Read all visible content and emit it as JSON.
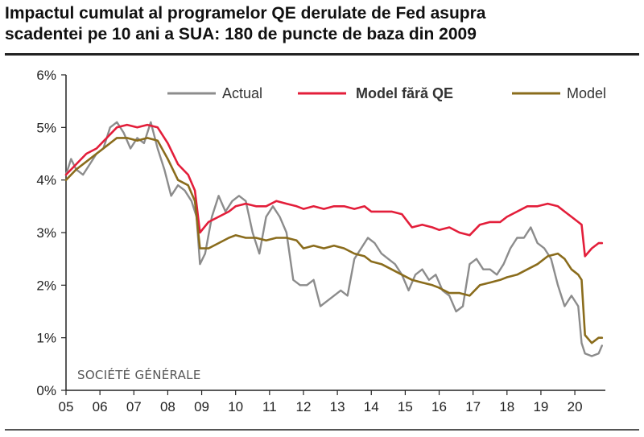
{
  "title_lines": [
    "Impactul cumulat al programelor QE derulate de Fed asupra",
    "scadentei pe 10 ani a SUA: 180 de puncte de baza din 2009"
  ],
  "source_label": "SOCIÉTÉ GÉNÉRALE",
  "colors": {
    "actual": "#8c8c8c",
    "no_qe": "#e31e3a",
    "model": "#8a6c1c",
    "axis": "#222222"
  },
  "chart_data": {
    "type": "line",
    "title": "Impactul cumulat al programelor QE derulate de Fed asupra scadentei pe 10 ani a SUA: 180 de puncte de baza din 2009",
    "xlabel": "",
    "ylabel": "",
    "x_range": [
      2005,
      2020.9
    ],
    "ylim": [
      0,
      6
    ],
    "y_ticks": [
      0,
      1,
      2,
      3,
      4,
      5,
      6
    ],
    "y_tick_labels": [
      "0%",
      "1%",
      "2%",
      "3%",
      "4%",
      "5%",
      "6%"
    ],
    "x_ticks": [
      2005,
      2006,
      2007,
      2008,
      2009,
      2010,
      2011,
      2012,
      2013,
      2014,
      2015,
      2016,
      2017,
      2018,
      2019,
      2020
    ],
    "x_tick_labels": [
      "05",
      "06",
      "07",
      "08",
      "09",
      "10",
      "11",
      "12",
      "13",
      "14",
      "15",
      "16",
      "17",
      "18",
      "19",
      "20"
    ],
    "grid": false,
    "legend_position": "top",
    "series": [
      {
        "name": "Actual",
        "x": [
          2005.0,
          2005.15,
          2005.3,
          2005.5,
          2005.7,
          2005.9,
          2006.1,
          2006.3,
          2006.5,
          2006.7,
          2006.9,
          2007.1,
          2007.3,
          2007.5,
          2007.7,
          2007.9,
          2008.1,
          2008.3,
          2008.5,
          2008.7,
          2008.85,
          2008.95,
          2009.1,
          2009.3,
          2009.5,
          2009.7,
          2009.9,
          2010.1,
          2010.3,
          2010.5,
          2010.7,
          2010.9,
          2011.1,
          2011.3,
          2011.5,
          2011.7,
          2011.9,
          2012.1,
          2012.3,
          2012.5,
          2012.7,
          2012.9,
          2013.1,
          2013.3,
          2013.5,
          2013.7,
          2013.9,
          2014.1,
          2014.3,
          2014.5,
          2014.7,
          2014.9,
          2015.1,
          2015.3,
          2015.5,
          2015.7,
          2015.9,
          2016.1,
          2016.3,
          2016.5,
          2016.7,
          2016.9,
          2017.1,
          2017.3,
          2017.5,
          2017.7,
          2017.9,
          2018.1,
          2018.3,
          2018.5,
          2018.7,
          2018.9,
          2019.1,
          2019.3,
          2019.5,
          2019.7,
          2019.9,
          2020.1,
          2020.2,
          2020.3,
          2020.5,
          2020.7,
          2020.8
        ],
        "values": [
          4.1,
          4.4,
          4.2,
          4.1,
          4.3,
          4.5,
          4.6,
          5.0,
          5.1,
          4.9,
          4.6,
          4.8,
          4.7,
          5.1,
          4.6,
          4.2,
          3.7,
          3.9,
          3.8,
          3.6,
          3.3,
          2.4,
          2.6,
          3.3,
          3.7,
          3.4,
          3.6,
          3.7,
          3.6,
          3.0,
          2.6,
          3.3,
          3.5,
          3.3,
          3.0,
          2.1,
          2.0,
          2.0,
          2.1,
          1.6,
          1.7,
          1.8,
          1.9,
          1.8,
          2.5,
          2.7,
          2.9,
          2.8,
          2.6,
          2.5,
          2.4,
          2.2,
          1.9,
          2.2,
          2.3,
          2.1,
          2.2,
          1.9,
          1.8,
          1.5,
          1.6,
          2.4,
          2.5,
          2.3,
          2.3,
          2.2,
          2.4,
          2.7,
          2.9,
          2.9,
          3.1,
          2.8,
          2.7,
          2.5,
          2.0,
          1.6,
          1.8,
          1.6,
          0.9,
          0.7,
          0.65,
          0.7,
          0.85
        ]
      },
      {
        "name": "Model fără QE",
        "x": [
          2005.0,
          2005.3,
          2005.6,
          2005.9,
          2006.2,
          2006.5,
          2006.8,
          2007.1,
          2007.4,
          2007.7,
          2008.0,
          2008.3,
          2008.6,
          2008.8,
          2008.95,
          2009.2,
          2009.5,
          2009.8,
          2010.0,
          2010.3,
          2010.6,
          2010.9,
          2011.2,
          2011.5,
          2011.8,
          2012.0,
          2012.3,
          2012.6,
          2012.9,
          2013.2,
          2013.5,
          2013.8,
          2014.0,
          2014.3,
          2014.6,
          2014.9,
          2015.2,
          2015.5,
          2015.8,
          2016.0,
          2016.3,
          2016.6,
          2016.9,
          2017.2,
          2017.5,
          2017.8,
          2018.0,
          2018.3,
          2018.6,
          2018.9,
          2019.2,
          2019.5,
          2019.7,
          2019.9,
          2020.1,
          2020.2,
          2020.3,
          2020.5,
          2020.7,
          2020.8
        ],
        "values": [
          4.1,
          4.3,
          4.5,
          4.6,
          4.8,
          5.0,
          5.05,
          5.0,
          5.05,
          5.0,
          4.7,
          4.3,
          4.1,
          3.8,
          3.0,
          3.2,
          3.3,
          3.4,
          3.5,
          3.55,
          3.5,
          3.5,
          3.6,
          3.55,
          3.5,
          3.45,
          3.5,
          3.45,
          3.5,
          3.5,
          3.45,
          3.5,
          3.4,
          3.4,
          3.4,
          3.35,
          3.1,
          3.15,
          3.1,
          3.05,
          3.1,
          3.0,
          2.95,
          3.15,
          3.2,
          3.2,
          3.3,
          3.4,
          3.5,
          3.5,
          3.55,
          3.5,
          3.4,
          3.3,
          3.2,
          3.15,
          2.55,
          2.7,
          2.8,
          2.8
        ]
      },
      {
        "name": "Model",
        "x": [
          2005.0,
          2005.3,
          2005.6,
          2005.9,
          2006.2,
          2006.5,
          2006.8,
          2007.1,
          2007.4,
          2007.7,
          2008.0,
          2008.3,
          2008.6,
          2008.8,
          2008.95,
          2009.2,
          2009.5,
          2009.8,
          2010.0,
          2010.3,
          2010.6,
          2010.9,
          2011.2,
          2011.5,
          2011.8,
          2012.0,
          2012.3,
          2012.6,
          2012.9,
          2013.2,
          2013.5,
          2013.8,
          2014.0,
          2014.3,
          2014.6,
          2014.9,
          2015.2,
          2015.5,
          2015.8,
          2016.0,
          2016.3,
          2016.6,
          2016.9,
          2017.2,
          2017.5,
          2017.8,
          2018.0,
          2018.3,
          2018.6,
          2018.9,
          2019.2,
          2019.5,
          2019.7,
          2019.9,
          2020.1,
          2020.2,
          2020.3,
          2020.5,
          2020.7,
          2020.8
        ],
        "values": [
          4.0,
          4.2,
          4.35,
          4.5,
          4.65,
          4.8,
          4.8,
          4.75,
          4.8,
          4.75,
          4.4,
          4.0,
          3.9,
          3.6,
          2.7,
          2.7,
          2.8,
          2.9,
          2.95,
          2.9,
          2.9,
          2.85,
          2.9,
          2.9,
          2.85,
          2.7,
          2.75,
          2.7,
          2.75,
          2.7,
          2.6,
          2.55,
          2.45,
          2.4,
          2.3,
          2.2,
          2.1,
          2.05,
          2.0,
          1.95,
          1.85,
          1.85,
          1.8,
          2.0,
          2.05,
          2.1,
          2.15,
          2.2,
          2.3,
          2.4,
          2.55,
          2.6,
          2.5,
          2.3,
          2.2,
          2.1,
          1.05,
          0.9,
          1.0,
          1.0
        ]
      }
    ]
  }
}
